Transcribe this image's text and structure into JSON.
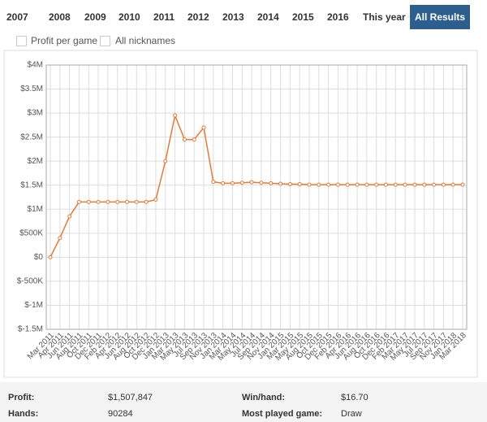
{
  "tabs": [
    "2007",
    "2008",
    "2009",
    "2010",
    "2011",
    "2012",
    "2013",
    "2014",
    "2015",
    "2016",
    "This year",
    "All Results"
  ],
  "active_tab": "All Results",
  "checkboxes": [
    "Profit per game",
    "All nicknames"
  ],
  "chart_data": {
    "type": "line",
    "categories": [
      "Mar 2011",
      "Apr 2011",
      "Jun 2011",
      "Aug 2011",
      "Oct 2011",
      "Dec 2011",
      "Feb 2012",
      "Apr 2012",
      "Jun 2012",
      "Aug 2012",
      "Oct 2012",
      "Dec 2012",
      "Jan 2013",
      "Mar 2013",
      "May 2013",
      "Jul 2013",
      "Sep 2013",
      "Nov 2013",
      "Jan 2014",
      "Mar 2014",
      "May 2014",
      "Jul 2014",
      "Sep 2014",
      "Nov 2014",
      "Jan 2015",
      "Mar 2015",
      "May 2015",
      "Aug 2015",
      "Oct 2015",
      "Dec 2015",
      "Feb 2016",
      "Apr 2016",
      "Jun 2016",
      "Aug 2016",
      "Oct 2016",
      "Dec 2016",
      "Feb 2017",
      "Mar 2017",
      "May 2017",
      "Jul 2017",
      "Sep 2017",
      "Nov 2017",
      "Jan 2018",
      "Mar 2018"
    ],
    "series": [
      {
        "color": "#e07b39",
        "values": [
          0,
          400000,
          850000,
          1150000,
          1150000,
          1150000,
          1150000,
          1150000,
          1150000,
          1150000,
          1150000,
          1200000,
          2000000,
          2950000,
          2450000,
          2450000,
          2700000,
          1570000,
          1540000,
          1540000,
          1550000,
          1560000,
          1550000,
          1540000,
          1530000,
          1520000,
          1520000,
          1510000,
          1510000,
          1510000,
          1510000,
          1510000,
          1510000,
          1510000,
          1510000,
          1510000,
          1510000,
          1510000,
          1510000,
          1510000,
          1510000,
          1510000,
          1510000,
          1510000
        ]
      }
    ],
    "ylim": [
      -1500000,
      4000000
    ],
    "yticks": [
      {
        "value": -1500000,
        "label": "$-1.5M"
      },
      {
        "value": -1000000,
        "label": "$-1M"
      },
      {
        "value": -500000,
        "label": "$-500K"
      },
      {
        "value": 0,
        "label": "$0"
      },
      {
        "value": 500000,
        "label": "$500K"
      },
      {
        "value": 1000000,
        "label": "$1M"
      },
      {
        "value": 1500000,
        "label": "$1.5M"
      },
      {
        "value": 2000000,
        "label": "$2M"
      },
      {
        "value": 2500000,
        "label": "$2.5M"
      },
      {
        "value": 3000000,
        "label": "$3M"
      },
      {
        "value": 3500000,
        "label": "$3.5M"
      },
      {
        "value": 4000000,
        "label": "$4M"
      }
    ],
    "grid": true
  },
  "stats": [
    {
      "label": "Profit:",
      "value": "$1,507,847"
    },
    {
      "label": "Win/hand:",
      "value": "$16.70"
    },
    {
      "label": "Hands:",
      "value": "90284"
    },
    {
      "label": "Most played game:",
      "value": "Draw"
    }
  ]
}
